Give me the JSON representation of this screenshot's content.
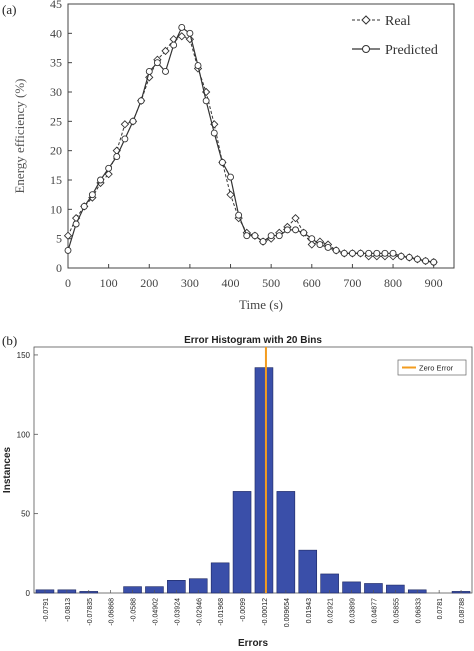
{
  "chart_data": [
    {
      "panel_label": "(a)",
      "type": "line",
      "xlabel": "Time (s)",
      "ylabel": "Energy efficiency (%)",
      "xlim": [
        0,
        950
      ],
      "ylim": [
        0,
        45
      ],
      "xticks": [
        "0",
        "100",
        "200",
        "300",
        "400",
        "500",
        "600",
        "700",
        "800",
        "900"
      ],
      "yticks": [
        "0",
        "5",
        "10",
        "15",
        "20",
        "25",
        "30",
        "35",
        "40",
        "45"
      ],
      "legend_position": "top-right",
      "grid": false,
      "series": [
        {
          "name": "Real",
          "style": "dashed-diamond",
          "points": [
            [
              0,
              5.5
            ],
            [
              20,
              8.5
            ],
            [
              40,
              10.5
            ],
            [
              60,
              12
            ],
            [
              80,
              14.5
            ],
            [
              100,
              16
            ],
            [
              120,
              20
            ],
            [
              140,
              24.5
            ],
            [
              160,
              25
            ],
            [
              180,
              28.5
            ],
            [
              200,
              32.5
            ],
            [
              220,
              35.5
            ],
            [
              240,
              37
            ],
            [
              260,
              39
            ],
            [
              280,
              39.5
            ],
            [
              300,
              39
            ],
            [
              320,
              34
            ],
            [
              340,
              30
            ],
            [
              360,
              24.5
            ],
            [
              380,
              18
            ],
            [
              400,
              12.5
            ],
            [
              420,
              8.5
            ],
            [
              440,
              6
            ],
            [
              460,
              5.5
            ],
            [
              480,
              4.5
            ],
            [
              500,
              5
            ],
            [
              520,
              6
            ],
            [
              540,
              7
            ],
            [
              560,
              8.5
            ],
            [
              580,
              6
            ],
            [
              600,
              4
            ],
            [
              620,
              4.5
            ],
            [
              640,
              4
            ],
            [
              660,
              3
            ],
            [
              680,
              2.5
            ],
            [
              700,
              2.5
            ],
            [
              720,
              2.5
            ],
            [
              740,
              2
            ],
            [
              760,
              2
            ],
            [
              780,
              2
            ],
            [
              800,
              2
            ],
            [
              820,
              2
            ],
            [
              840,
              1.8
            ],
            [
              860,
              1.5
            ],
            [
              880,
              1.2
            ],
            [
              900,
              1
            ]
          ]
        },
        {
          "name": "Predicted",
          "style": "solid-circle",
          "points": [
            [
              0,
              3
            ],
            [
              20,
              7.5
            ],
            [
              40,
              10.5
            ],
            [
              60,
              12.5
            ],
            [
              80,
              15
            ],
            [
              100,
              17
            ],
            [
              120,
              19
            ],
            [
              140,
              22
            ],
            [
              160,
              25
            ],
            [
              180,
              28.5
            ],
            [
              200,
              33.5
            ],
            [
              220,
              35
            ],
            [
              240,
              33.5
            ],
            [
              260,
              38
            ],
            [
              280,
              41
            ],
            [
              300,
              40
            ],
            [
              320,
              34.5
            ],
            [
              340,
              28.5
            ],
            [
              360,
              23
            ],
            [
              380,
              18
            ],
            [
              400,
              15.5
            ],
            [
              420,
              9
            ],
            [
              440,
              5.5
            ],
            [
              460,
              5.5
            ],
            [
              480,
              4.5
            ],
            [
              500,
              5.5
            ],
            [
              520,
              5.5
            ],
            [
              540,
              6.5
            ],
            [
              560,
              6.5
            ],
            [
              580,
              6
            ],
            [
              600,
              5
            ],
            [
              620,
              4
            ],
            [
              640,
              3.5
            ],
            [
              660,
              3
            ],
            [
              680,
              2.5
            ],
            [
              700,
              2.5
            ],
            [
              720,
              2.5
            ],
            [
              740,
              2.5
            ],
            [
              760,
              2.5
            ],
            [
              780,
              2.5
            ],
            [
              800,
              2.5
            ],
            [
              820,
              2
            ],
            [
              840,
              1.8
            ],
            [
              860,
              1.5
            ],
            [
              880,
              1.2
            ],
            [
              900,
              1
            ]
          ]
        }
      ]
    },
    {
      "panel_label": "(b)",
      "type": "bar",
      "title": "Error Histogram with 20 Bins",
      "xlabel": "Errors",
      "ylabel": "Instances",
      "ylim": [
        0,
        155
      ],
      "yticks": [
        "0",
        "50",
        "100",
        "150"
      ],
      "categories": [
        "-0.0791",
        "-0.0813",
        "-0.07835",
        "-0.06868",
        "-0.0588",
        "-0.04902",
        "-0.03924",
        "-0.02946",
        "-0.01968",
        "-0.0099",
        "-0.00012",
        "0.009654",
        "0.01943",
        "0.02921",
        "0.03899",
        "0.04877",
        "0.05855",
        "0.06833",
        "0.0781",
        "0.08788"
      ],
      "values": [
        2,
        2,
        1,
        0,
        4,
        4,
        8,
        9,
        19,
        64,
        142,
        64,
        27,
        12,
        7,
        6,
        5,
        2,
        0,
        1
      ],
      "bar_color": "#3a4fa9",
      "zero_error": {
        "label": "Zero Error",
        "color": "#f39c1f",
        "index": 10
      },
      "legend_position": "top-right"
    }
  ]
}
